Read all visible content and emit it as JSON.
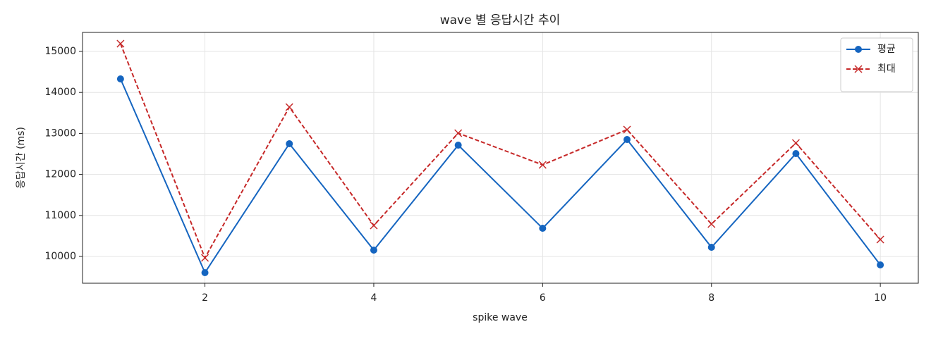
{
  "chart_data": {
    "type": "line",
    "title": "wave 별 응답시간 추이",
    "x_label": "spike wave",
    "y_label": "응답시간 (ms)",
    "x": [
      1,
      2,
      3,
      4,
      5,
      6,
      7,
      8,
      9,
      10
    ],
    "series": [
      {
        "name": "평균",
        "color": "#1565c0",
        "marker": "o",
        "linestyle": "solid",
        "values": [
          14330,
          9605,
          12749,
          10155,
          12715,
          10687,
          12852,
          10223,
          12509,
          9794
        ]
      },
      {
        "name": "최대",
        "color": "#c62828",
        "marker": "x",
        "linestyle": "dashed",
        "values": [
          15189,
          9966,
          13643,
          10756,
          13007,
          12234,
          13093,
          10790,
          12766,
          10412
        ]
      }
    ],
    "xlim": [
      0.55,
      10.45
    ],
    "xticks": [
      2,
      4,
      6,
      8,
      10
    ],
    "ylim": [
      9347,
      15464
    ],
    "yticks": [
      10000,
      11000,
      12000,
      13000,
      14000,
      15000
    ],
    "grid": true,
    "legend": "upper right"
  }
}
